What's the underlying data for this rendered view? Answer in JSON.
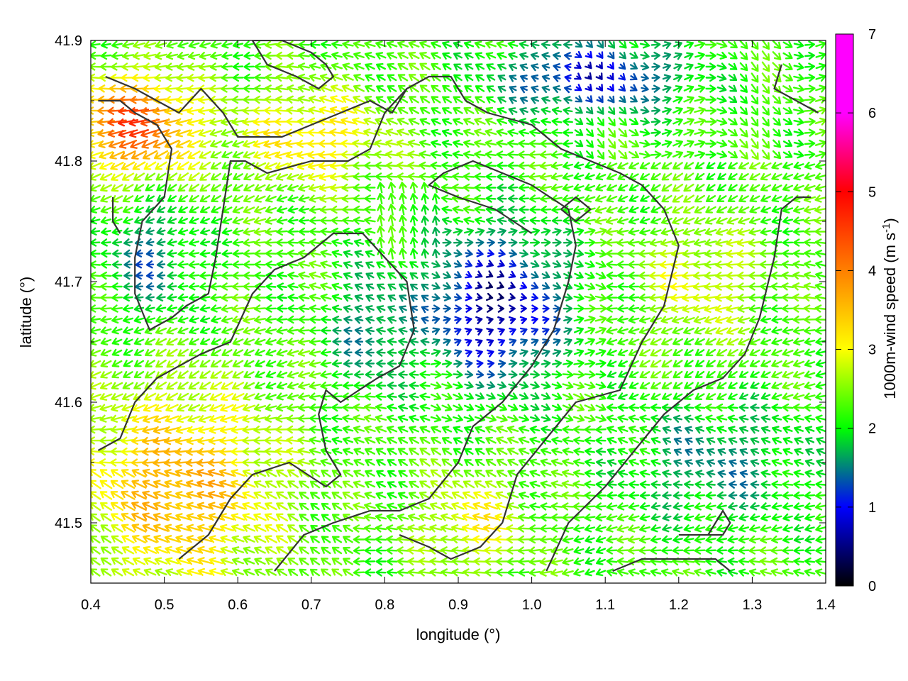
{
  "chart_data": {
    "type": "vector-field",
    "xlabel": "longitude (°)",
    "ylabel": "latitude (°)",
    "xlim": [
      0.4,
      1.4
    ],
    "ylim": [
      41.45,
      41.9
    ],
    "xticks": [
      "0.4",
      "0.5",
      "0.6",
      "0.7",
      "0.8",
      "0.9",
      "1.0",
      "1.1",
      "1.2",
      "1.3",
      "1.4"
    ],
    "yticks": [
      "41.5",
      "41.6",
      "41.7",
      "41.8",
      "41.9"
    ],
    "colorbar": {
      "label": "1000m-wind speed (m s",
      "label_exp": "-1",
      "label_end": ")",
      "range": [
        0,
        7
      ],
      "ticks": [
        "0",
        "1",
        "2",
        "3",
        "4",
        "5",
        "6",
        "7"
      ],
      "palette": [
        "#000000",
        "#0000ff",
        "#00ff00",
        "#ffff00",
        "#ff8000",
        "#ff0000",
        "#ff00ff"
      ]
    },
    "contours": [
      [
        [
          0.42,
          41.87
        ],
        [
          0.46,
          41.86
        ],
        [
          0.49,
          41.85
        ],
        [
          0.52,
          41.84
        ],
        [
          0.55,
          41.86
        ],
        [
          0.58,
          41.84
        ],
        [
          0.6,
          41.82
        ],
        [
          0.66,
          41.82
        ],
        [
          0.7,
          41.83
        ],
        [
          0.74,
          41.84
        ],
        [
          0.78,
          41.85
        ],
        [
          0.81,
          41.84
        ],
        [
          0.83,
          41.86
        ],
        [
          0.86,
          41.87
        ],
        [
          0.89,
          41.87
        ],
        [
          0.91,
          41.85
        ],
        [
          0.94,
          41.84
        ],
        [
          1.0,
          41.83
        ],
        [
          1.04,
          41.81
        ],
        [
          1.08,
          41.8
        ],
        [
          1.12,
          41.79
        ],
        [
          1.15,
          41.78
        ],
        [
          1.18,
          41.76
        ],
        [
          1.2,
          41.73
        ],
        [
          1.18,
          41.68
        ],
        [
          1.15,
          41.65
        ],
        [
          1.12,
          41.61
        ],
        [
          1.06,
          41.6
        ],
        [
          1.02,
          41.57
        ],
        [
          0.98,
          41.54
        ],
        [
          0.96,
          41.5
        ],
        [
          0.93,
          41.48
        ],
        [
          0.89,
          41.47
        ],
        [
          0.86,
          41.48
        ],
        [
          0.82,
          41.49
        ]
      ],
      [
        [
          0.41,
          41.85
        ],
        [
          0.44,
          41.85
        ],
        [
          0.46,
          41.84
        ],
        [
          0.49,
          41.83
        ],
        [
          0.51,
          41.81
        ],
        [
          0.5,
          41.77
        ],
        [
          0.47,
          41.75
        ],
        [
          0.46,
          41.72
        ],
        [
          0.46,
          41.69
        ],
        [
          0.48,
          41.66
        ],
        [
          0.51,
          41.67
        ],
        [
          0.53,
          41.68
        ],
        [
          0.56,
          41.69
        ],
        [
          0.57,
          41.72
        ],
        [
          0.58,
          41.76
        ],
        [
          0.59,
          41.8
        ],
        [
          0.61,
          41.8
        ],
        [
          0.64,
          41.79
        ],
        [
          0.7,
          41.8
        ],
        [
          0.75,
          41.8
        ],
        [
          0.78,
          41.81
        ],
        [
          0.8,
          41.84
        ],
        [
          0.83,
          41.86
        ]
      ],
      [
        [
          0.41,
          41.56
        ],
        [
          0.44,
          41.57
        ],
        [
          0.46,
          41.6
        ],
        [
          0.49,
          41.62
        ],
        [
          0.55,
          41.64
        ],
        [
          0.59,
          41.65
        ],
        [
          0.62,
          41.69
        ],
        [
          0.65,
          41.71
        ],
        [
          0.69,
          41.72
        ],
        [
          0.73,
          41.74
        ],
        [
          0.77,
          41.74
        ],
        [
          0.8,
          41.72
        ],
        [
          0.83,
          41.7
        ],
        [
          0.84,
          41.66
        ],
        [
          0.82,
          41.63
        ],
        [
          0.79,
          41.62
        ],
        [
          0.74,
          41.6
        ],
        [
          0.72,
          41.61
        ],
        [
          0.71,
          41.59
        ],
        [
          0.72,
          41.56
        ],
        [
          0.74,
          41.54
        ],
        [
          0.72,
          41.53
        ],
        [
          0.67,
          41.55
        ],
        [
          0.62,
          41.54
        ],
        [
          0.59,
          41.52
        ],
        [
          0.56,
          41.49
        ],
        [
          0.52,
          41.47
        ]
      ],
      [
        [
          0.65,
          41.46
        ],
        [
          0.69,
          41.49
        ],
        [
          0.73,
          41.5
        ],
        [
          0.78,
          41.51
        ],
        [
          0.82,
          41.51
        ],
        [
          0.86,
          41.52
        ],
        [
          0.9,
          41.55
        ],
        [
          0.92,
          41.58
        ],
        [
          0.96,
          41.6
        ],
        [
          1.0,
          41.63
        ],
        [
          1.03,
          41.66
        ],
        [
          1.05,
          41.7
        ],
        [
          1.06,
          41.73
        ],
        [
          1.05,
          41.76
        ],
        [
          1.0,
          41.78
        ],
        [
          0.96,
          41.79
        ],
        [
          0.92,
          41.8
        ],
        [
          0.88,
          41.79
        ],
        [
          0.86,
          41.78
        ],
        [
          0.9,
          41.77
        ],
        [
          0.95,
          41.76
        ],
        [
          1.0,
          41.74
        ]
      ],
      [
        [
          1.02,
          41.46
        ],
        [
          1.05,
          41.5
        ],
        [
          1.1,
          41.53
        ],
        [
          1.14,
          41.56
        ],
        [
          1.18,
          41.59
        ],
        [
          1.22,
          41.61
        ],
        [
          1.26,
          41.62
        ],
        [
          1.29,
          41.64
        ],
        [
          1.31,
          41.67
        ],
        [
          1.33,
          41.72
        ],
        [
          1.34,
          41.76
        ],
        [
          1.36,
          41.77
        ],
        [
          1.38,
          41.77
        ]
      ],
      [
        [
          1.11,
          41.46
        ],
        [
          1.15,
          41.47
        ],
        [
          1.2,
          41.47
        ],
        [
          1.25,
          41.47
        ],
        [
          1.27,
          41.46
        ]
      ],
      [
        [
          1.2,
          41.49
        ],
        [
          1.24,
          41.49
        ],
        [
          1.26,
          41.51
        ],
        [
          1.27,
          41.5
        ],
        [
          1.26,
          41.49
        ],
        [
          1.2,
          41.49
        ]
      ],
      [
        [
          0.62,
          41.9
        ],
        [
          0.66,
          41.9
        ],
        [
          0.7,
          41.89
        ],
        [
          0.72,
          41.88
        ],
        [
          0.73,
          41.87
        ],
        [
          0.71,
          41.86
        ],
        [
          0.68,
          41.87
        ],
        [
          0.64,
          41.88
        ],
        [
          0.62,
          41.9
        ]
      ],
      [
        [
          1.34,
          41.88
        ],
        [
          1.33,
          41.86
        ],
        [
          1.36,
          41.85
        ],
        [
          1.39,
          41.84
        ]
      ],
      [
        [
          1.04,
          41.76
        ],
        [
          1.06,
          41.77
        ],
        [
          1.08,
          41.76
        ],
        [
          1.06,
          41.75
        ],
        [
          1.04,
          41.76
        ]
      ],
      [
        [
          0.43,
          41.77
        ],
        [
          0.43,
          41.75
        ],
        [
          0.44,
          41.74
        ]
      ]
    ]
  }
}
